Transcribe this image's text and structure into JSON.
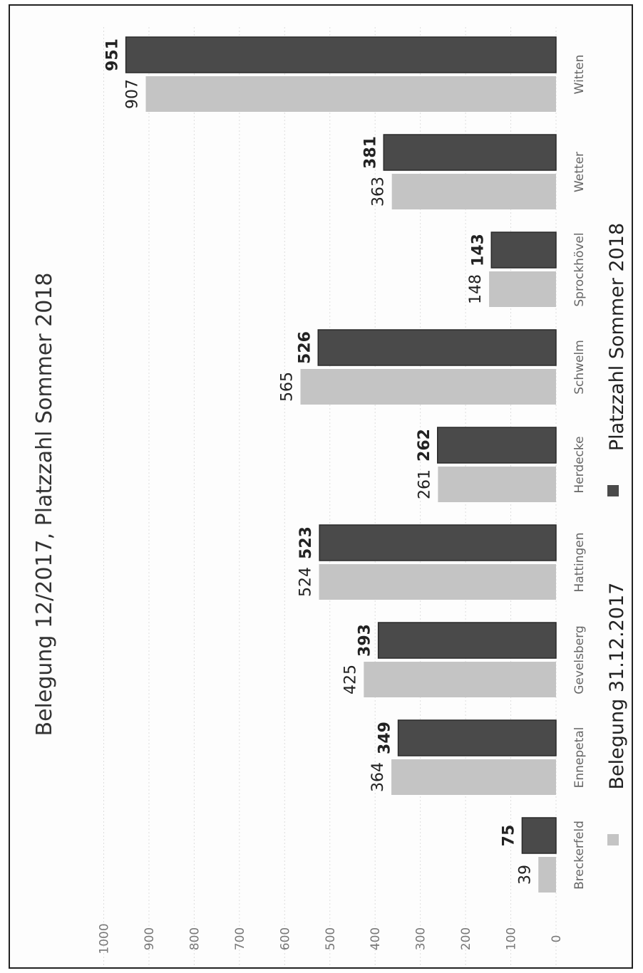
{
  "chart_data": {
    "type": "bar",
    "title": "Belegung 12/2017, Platzzahl Sommer 2018",
    "categories": [
      "Breckerfeld",
      "Ennepetal",
      "Gevelsberg",
      "Hattingen",
      "Herdecke",
      "Schwelm",
      "Sprockhövel",
      "Wetter",
      "Witten"
    ],
    "series": [
      {
        "name": "Belegung 31.12.2017",
        "values": [
          39,
          364,
          425,
          524,
          261,
          565,
          148,
          363,
          907
        ],
        "color": "#c4c4c4"
      },
      {
        "name": "Platzzahl Sommer 2018",
        "values": [
          75,
          349,
          393,
          523,
          262,
          526,
          143,
          381,
          951
        ],
        "color": "#4a4a4a"
      }
    ],
    "ylim": [
      0,
      1000
    ],
    "yticks": [
      "0",
      "100",
      "200",
      "300",
      "400",
      "500",
      "600",
      "700",
      "800",
      "900",
      "1000"
    ],
    "grid": true,
    "legend_position": "bottom",
    "orientation": "rotated"
  }
}
